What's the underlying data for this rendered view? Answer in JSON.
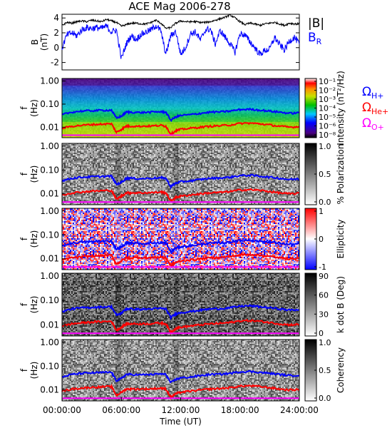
{
  "title": "ACE Mag 2006-278",
  "colors": {
    "blue": "#0000ff",
    "red": "#ff0000",
    "magenta": "#ff00ff",
    "black": "#000000"
  },
  "chart_data": [
    {
      "type": "line",
      "ylabel": "B",
      "yunit": "(nT)",
      "ylim": [
        -3,
        4.5
      ],
      "yticks": [
        "4",
        "2",
        "0",
        "-2"
      ],
      "yticks_values": [
        4,
        2,
        0,
        -2
      ],
      "x_hours": [
        0,
        0.5,
        1,
        1.5,
        2,
        2.5,
        3,
        3.5,
        4,
        4.5,
        5,
        5.5,
        6,
        6.5,
        7,
        7.5,
        8,
        8.5,
        9,
        9.5,
        10,
        10.5,
        11,
        11.5,
        12,
        12.5,
        13,
        13.5,
        14,
        14.5,
        15,
        15.5,
        16,
        16.5,
        17,
        17.5,
        18,
        18.5,
        19,
        19.5,
        20,
        20.5,
        21,
        21.5,
        22,
        22.5,
        23,
        23.5,
        24
      ],
      "series": [
        {
          "name": "|B|",
          "color": "#000000",
          "values": [
            3.0,
            3.4,
            3.3,
            3.5,
            3.6,
            3.5,
            3.7,
            3.6,
            3.5,
            3.8,
            3.6,
            3.4,
            2.9,
            3.1,
            3.3,
            3.3,
            3.2,
            3.2,
            3.4,
            3.7,
            3.3,
            2.6,
            2.7,
            3.3,
            3.6,
            3.5,
            3.5,
            3.5,
            3.4,
            3.4,
            3.5,
            3.7,
            3.9,
            4.1,
            4.4,
            4.0,
            3.5,
            3.1,
            3.3,
            3.2,
            3.0,
            3.2,
            3.3,
            3.4,
            3.2,
            3.0,
            3.3,
            3.2,
            3.2
          ]
        },
        {
          "name": "B_R",
          "color": "#0000ff",
          "values": [
            0.0,
            1.7,
            2.0,
            1.6,
            2.4,
            2.7,
            2.6,
            2.7,
            2.6,
            2.9,
            2.1,
            2.4,
            -1.5,
            0.5,
            1.6,
            1.1,
            1.8,
            2.1,
            2.4,
            3.0,
            2.2,
            -0.9,
            1.6,
            2.2,
            -0.9,
            0.0,
            1.9,
            2.1,
            1.0,
            2.4,
            2.5,
            0.5,
            2.3,
            1.4,
            0.5,
            -0.6,
            1.9,
            1.7,
            0.8,
            0.0,
            -0.9,
            -0.4,
            -0.2,
            1.4,
            0.4,
            -0.3,
            0.9,
            1.4,
            0.5
          ]
        }
      ],
      "legend": [
        {
          "text": "|B|",
          "color": "#000000"
        },
        {
          "text": "B",
          "sub": "R",
          "color": "#0000ff"
        }
      ]
    },
    {
      "type": "heatmap",
      "ylabel": "f",
      "yunit": "(Hz)",
      "yticks": [
        "1.00",
        "0.10",
        "0.01"
      ],
      "yticks_values": [
        1.0,
        0.1,
        0.01
      ],
      "ylim": [
        0.0035,
        1.3
      ],
      "yscale": "log",
      "colorbar_label": "Intensity (nT²/Hz)",
      "colorbar_ticks": [
        "10⁻¹",
        "10⁻²",
        "10⁻³",
        "10⁻⁴",
        "10⁻⁵",
        "10⁻⁶",
        "10⁻⁸"
      ],
      "colormap": "rainbow",
      "legend": [
        {
          "text": "Ω",
          "sub": "H+",
          "color": "#0000ff"
        },
        {
          "text": "Ω",
          "sub": "He+",
          "color": "#ff0000"
        },
        {
          "text": "Ω",
          "sub": "O+",
          "color": "#ff00ff"
        }
      ]
    },
    {
      "type": "heatmap",
      "ylabel": "f",
      "yunit": "(Hz)",
      "yticks": [
        "1.00",
        "0.10",
        "0.01"
      ],
      "yticks_values": [
        1.0,
        0.1,
        0.01
      ],
      "ylim": [
        0.0035,
        1.3
      ],
      "yscale": "log",
      "colorbar_label": "% Polarization",
      "colorbar_ticks": [
        "1.0",
        "0.5",
        "0.0"
      ],
      "colormap": "gray"
    },
    {
      "type": "heatmap",
      "ylabel": "f",
      "yunit": "(Hz)",
      "yticks": [
        "1.00",
        "0.10",
        "0.01"
      ],
      "yticks_values": [
        1.0,
        0.1,
        0.01
      ],
      "ylim": [
        0.0035,
        1.3
      ],
      "yscale": "log",
      "colorbar_label": "Ellipticity",
      "colorbar_ticks": [
        "1",
        "0",
        "-1"
      ],
      "colormap": "bwr"
    },
    {
      "type": "heatmap",
      "ylabel": "f",
      "yunit": "(Hz)",
      "yticks": [
        "1.00",
        "0.10",
        "0.01"
      ],
      "yticks_values": [
        1.0,
        0.1,
        0.01
      ],
      "ylim": [
        0.0035,
        1.3
      ],
      "yscale": "log",
      "colorbar_label": "k dot B (Deg)",
      "colorbar_ticks": [
        "90",
        "60",
        "30",
        "0"
      ],
      "colormap": "gray"
    },
    {
      "type": "heatmap",
      "ylabel": "f",
      "yunit": "(Hz)",
      "yticks": [
        "1.00",
        "0.10",
        "0.01"
      ],
      "yticks_values": [
        1.0,
        0.1,
        0.01
      ],
      "ylim": [
        0.0035,
        1.3
      ],
      "yscale": "log",
      "colorbar_label": "Coherency",
      "colorbar_ticks": [
        "1.0",
        "0.5",
        "0.0"
      ],
      "colormap": "gray"
    }
  ],
  "gyro_lines": {
    "x_hours": [
      0,
      1,
      2,
      3,
      4,
      5,
      5.5,
      6,
      6.5,
      7,
      8,
      9,
      10,
      10.5,
      11,
      11.5,
      12,
      13,
      14,
      15,
      16,
      17,
      18,
      19,
      20,
      21,
      22,
      23,
      24
    ],
    "H+": [
      0.035,
      0.045,
      0.05,
      0.052,
      0.054,
      0.055,
      0.025,
      0.03,
      0.045,
      0.045,
      0.043,
      0.045,
      0.047,
      0.045,
      0.02,
      0.028,
      0.032,
      0.035,
      0.04,
      0.045,
      0.046,
      0.05,
      0.058,
      0.06,
      0.055,
      0.05,
      0.045,
      0.04,
      0.042
    ],
    "He+": [
      0.009,
      0.011,
      0.012,
      0.013,
      0.0135,
      0.014,
      0.006,
      0.008,
      0.011,
      0.011,
      0.011,
      0.0112,
      0.012,
      0.011,
      0.005,
      0.007,
      0.008,
      0.009,
      0.01,
      0.011,
      0.0115,
      0.0125,
      0.0145,
      0.015,
      0.014,
      0.0125,
      0.011,
      0.01,
      0.0105
    ],
    "O+": [
      0.0045,
      0.0045,
      0.0045,
      0.0045,
      0.0045,
      0.0045,
      0.0045,
      0.0045,
      0.0045,
      0.0045,
      0.0045,
      0.0045,
      0.0045,
      0.0045,
      0.0045,
      0.0045,
      0.0045,
      0.0045,
      0.0045,
      0.0045,
      0.0045,
      0.0045,
      0.0045,
      0.0045,
      0.0045,
      0.0045,
      0.0045,
      0.0045,
      0.0045
    ]
  },
  "xaxis": {
    "label": "Time (UT)",
    "ticks": [
      "00:00:00",
      "06:00:00",
      "12:00:00",
      "18:00:00",
      "24:00:00"
    ],
    "tick_hours": [
      0,
      6,
      12,
      18,
      24
    ]
  }
}
